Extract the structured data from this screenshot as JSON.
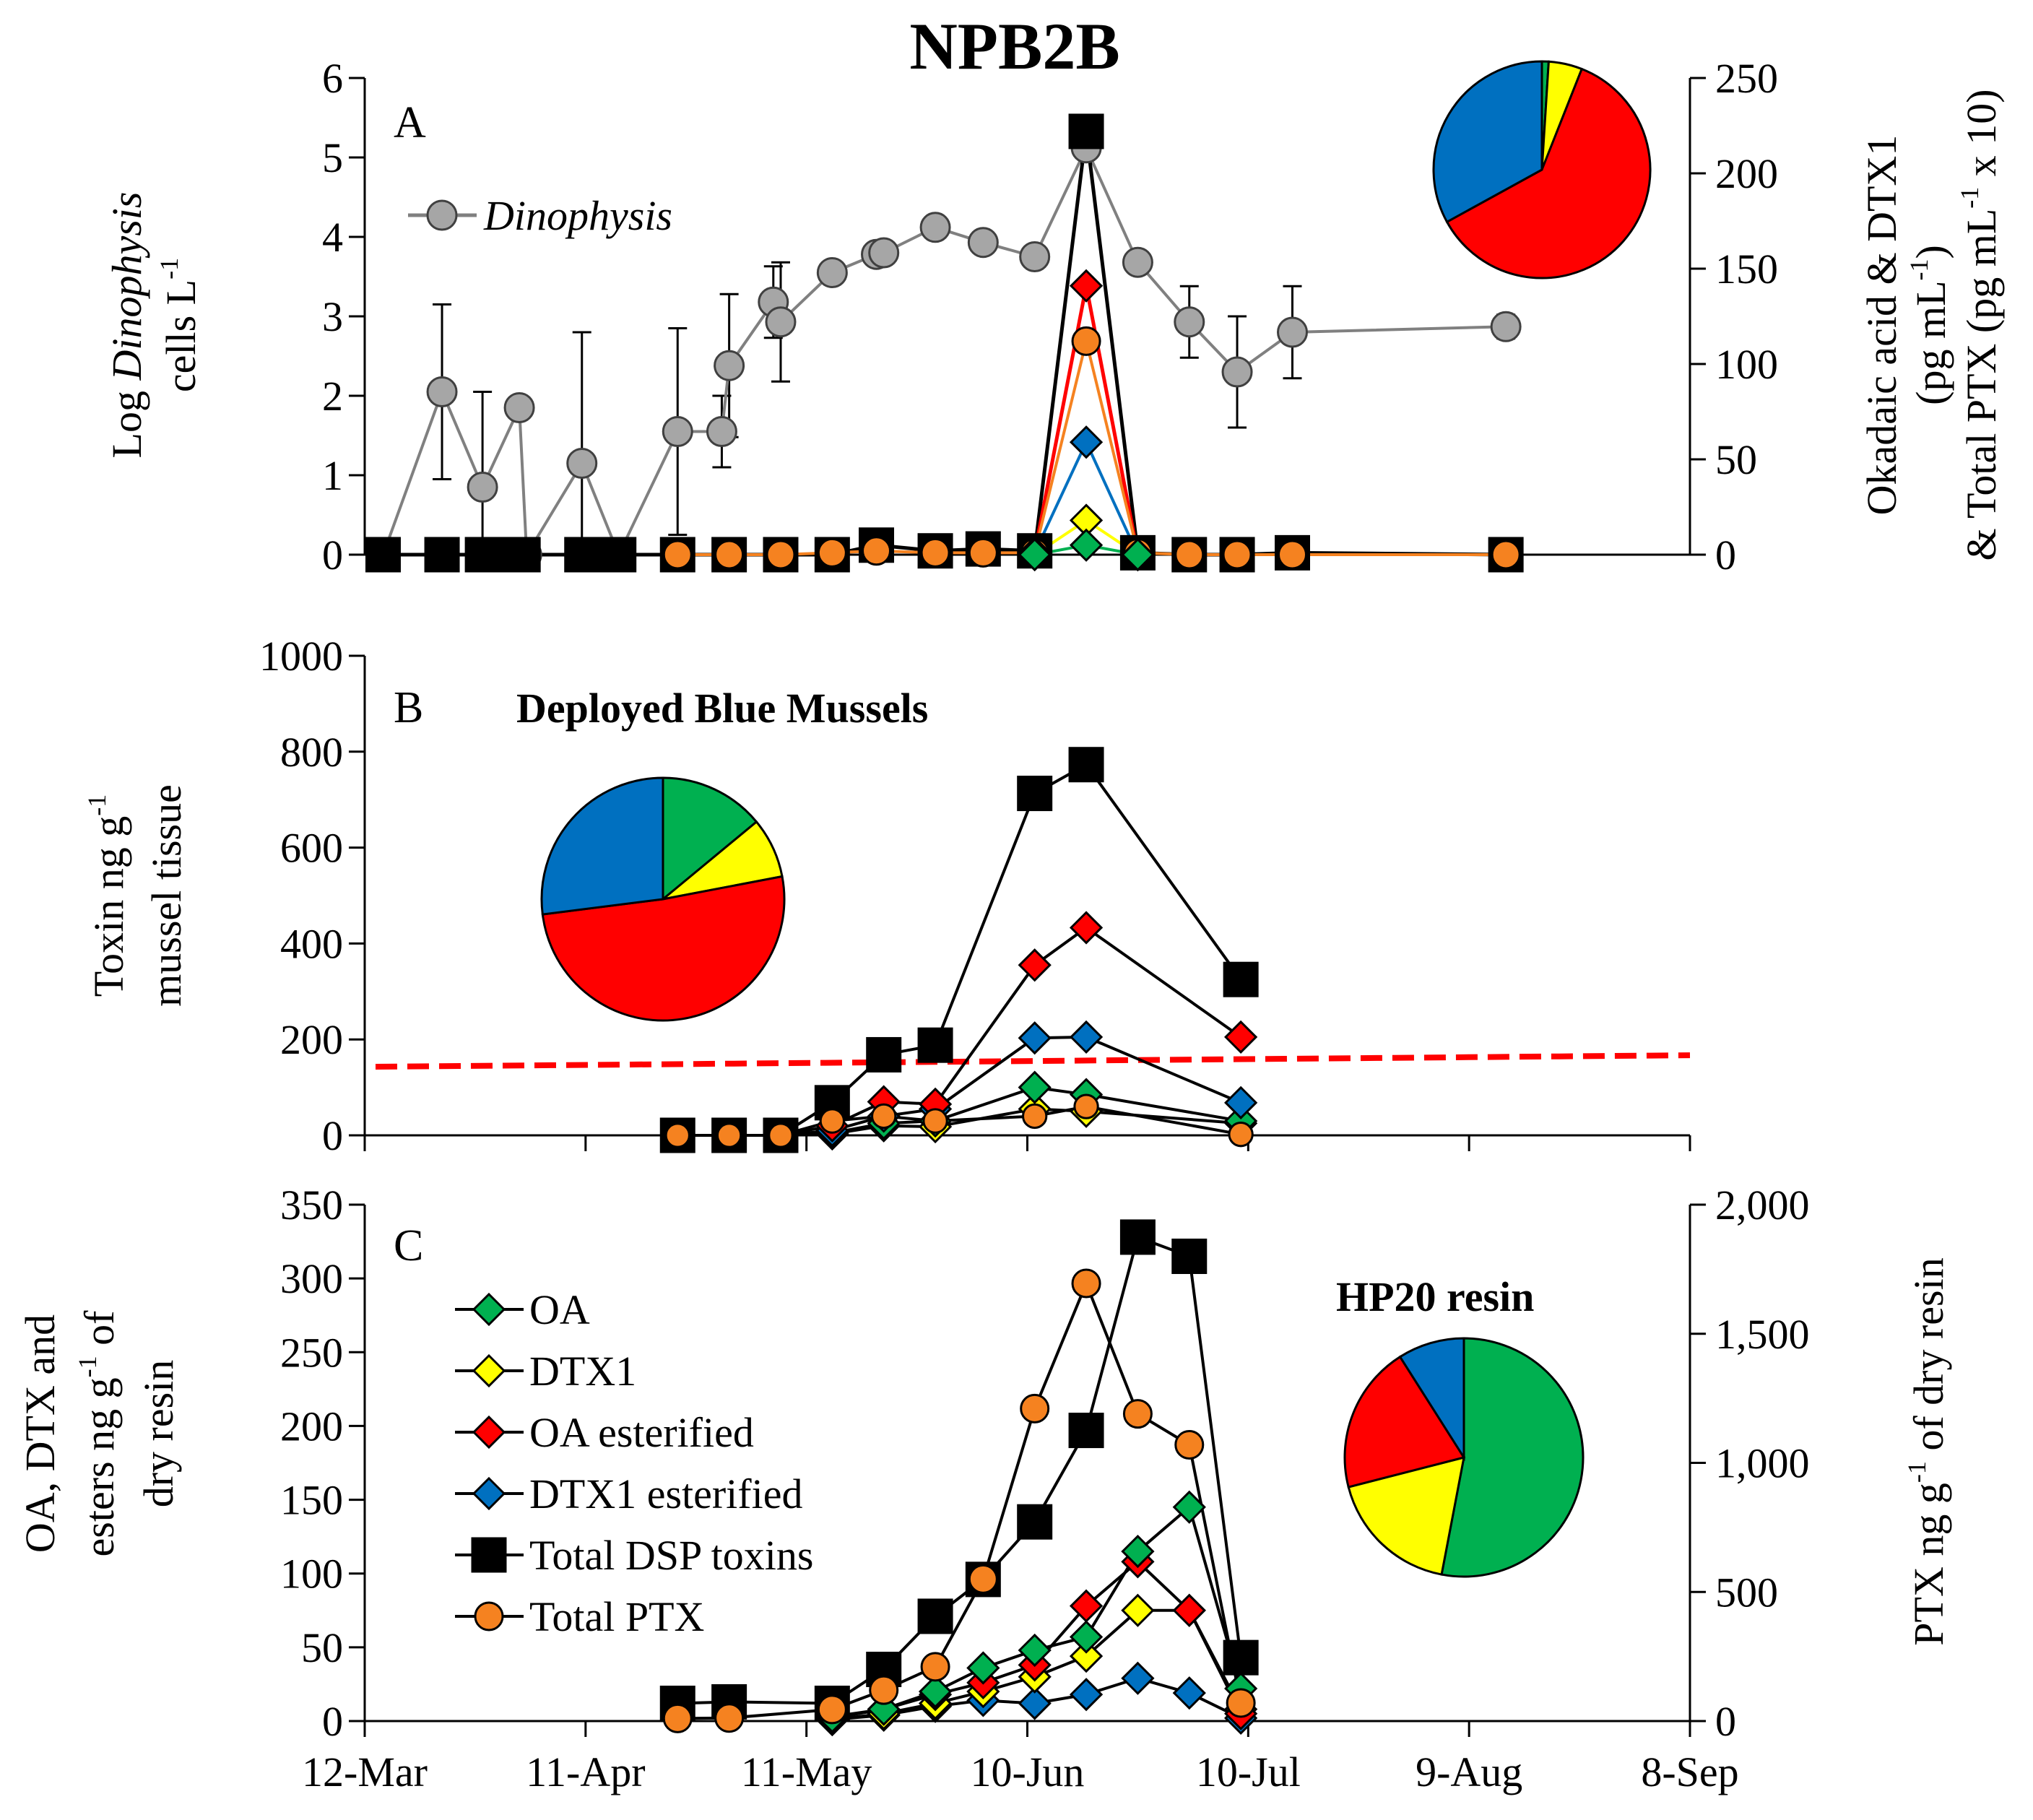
{
  "figure_title": "NPB2B",
  "date_axis": {
    "tick_labels": [
      "12-Mar",
      "11-Apr",
      "11-May",
      "10-Jun",
      "10-Jul",
      "9-Aug",
      "8-Sep"
    ],
    "tick_days": [
      0,
      30,
      60,
      90,
      120,
      150,
      180
    ],
    "range_days": [
      0,
      180
    ]
  },
  "colors": {
    "OA": "#00b050",
    "DTX1": "#ffff00",
    "OA esterified": "#ff0000",
    "DTX1 esterified": "#0070c0",
    "Total DSP toxins": "#000000",
    "Total PTX": "#f58220",
    "Dinophysis": "#a6a6a6",
    "threshold": "#ff0000"
  },
  "legend": {
    "items": [
      "OA",
      "DTX1",
      "OA esterified",
      "DTX1 esterified",
      "Total DSP toxins",
      "Total PTX"
    ]
  },
  "chart_data": [
    {
      "type": "line",
      "panel": "A",
      "title": "",
      "xlabel": "",
      "ylabel": "Log Dinophysis cells L-1",
      "ylabel_parts": {
        "line1_prefix": "Log ",
        "line1_italic": "Dinophysis",
        "line2": "cells L",
        "line2_sup": "-1"
      },
      "y2label_parts": {
        "line1": "Okadaic acid & DTX1",
        "line2_prefix": "(pg mL",
        "line2_sup": "-1",
        "line2_suffix": ")",
        "line3_prefix": "& Total PTX (pg mL",
        "line3_sup": "-1",
        "line3_suffix": " x 10)"
      },
      "ylim": [
        0,
        6
      ],
      "yticks": [
        0,
        1,
        2,
        3,
        4,
        5,
        6
      ],
      "y2lim": [
        0,
        250
      ],
      "y2ticks": [
        0,
        50,
        100,
        150,
        200,
        250
      ],
      "series": [
        {
          "name": "Dinophysis",
          "axis": "left",
          "legend_label": "Dinophysis",
          "points": [
            {
              "day": 2.5,
              "y": 0
            },
            {
              "day": 10.5,
              "y": 2.05,
              "err": 1.1
            },
            {
              "day": 16,
              "y": 0.85,
              "err": 1.2
            },
            {
              "day": 21,
              "y": 1.85,
              "err": 0
            },
            {
              "day": 22,
              "y": 0
            },
            {
              "day": 29.5,
              "y": 1.15,
              "err": 1.65
            },
            {
              "day": 34.5,
              "y": 0
            },
            {
              "day": 42.5,
              "y": 1.55,
              "err": 1.3
            },
            {
              "day": 48.5,
              "y": 1.55,
              "err": 0.45
            },
            {
              "day": 49.5,
              "y": 2.38,
              "err": 0.9
            },
            {
              "day": 55.5,
              "y": 3.18,
              "err": 0.45
            },
            {
              "day": 56.5,
              "y": 2.93,
              "err": 0.75
            },
            {
              "day": 63.5,
              "y": 3.55
            },
            {
              "day": 69.5,
              "y": 3.78
            },
            {
              "day": 70.5,
              "y": 3.8
            },
            {
              "day": 77.5,
              "y": 4.12
            },
            {
              "day": 84,
              "y": 3.93
            },
            {
              "day": 91,
              "y": 3.75
            },
            {
              "day": 98,
              "y": 5.12
            },
            {
              "day": 105,
              "y": 3.68
            },
            {
              "day": 112,
              "y": 2.93,
              "err": 0.45
            },
            {
              "day": 118.5,
              "y": 2.3,
              "err": 0.7
            },
            {
              "day": 126,
              "y": 2.8,
              "err": 0.58
            },
            {
              "day": 155,
              "y": 2.87,
              "err": 0.15
            }
          ]
        },
        {
          "name": "Total DSP toxins",
          "axis": "right",
          "marker": "square",
          "days": [
            2.5,
            10.5,
            16,
            18,
            21.5,
            29.5,
            32,
            34.5,
            42.5,
            49.5,
            56.5,
            63.5,
            69.5,
            77.5,
            84,
            91,
            98,
            105,
            112,
            118.5,
            126,
            155
          ],
          "values": [
            0,
            0,
            0,
            0,
            0,
            0,
            0,
            0,
            0,
            0,
            0,
            0,
            5,
            2,
            3,
            2,
            222,
            1,
            0,
            0,
            1,
            0
          ]
        },
        {
          "name": "OA esterified",
          "axis": "right",
          "marker": "diamond",
          "days": [
            91,
            98,
            105
          ],
          "values": [
            1,
            141,
            0
          ]
        },
        {
          "name": "DTX1 esterified",
          "axis": "right",
          "marker": "diamond",
          "days": [
            91,
            98,
            105
          ],
          "values": [
            1,
            59,
            0
          ]
        },
        {
          "name": "DTX1",
          "axis": "right",
          "marker": "diamond",
          "days": [
            91,
            98,
            105
          ],
          "values": [
            0,
            18,
            0
          ]
        },
        {
          "name": "OA",
          "axis": "right",
          "marker": "diamond",
          "days": [
            91,
            98,
            105
          ],
          "values": [
            0,
            5,
            0
          ]
        },
        {
          "name": "Total PTX",
          "axis": "right",
          "marker": "circle",
          "days": [
            42.5,
            49.5,
            56.5,
            63.5,
            69.5,
            77.5,
            84,
            91,
            98,
            105,
            112,
            118.5,
            126,
            155
          ],
          "values": [
            0,
            0,
            0,
            1,
            2,
            1,
            1,
            1,
            112,
            1,
            0,
            0,
            0,
            0
          ]
        }
      ],
      "pie": {
        "labels": [
          "OA",
          "DTX1",
          "OA esterified",
          "DTX1 esterified"
        ],
        "values": [
          1,
          5,
          61,
          33
        ]
      }
    },
    {
      "type": "line",
      "panel": "B",
      "title": "Deployed Blue Mussels",
      "xlabel": "",
      "ylabel": "Toxin ng g-1 mussel tissue",
      "ylabel_parts": {
        "line1_prefix": "Toxin ng g",
        "line1_sup": "-1",
        "line2": "mussel tissue"
      },
      "ylim": [
        0,
        1000
      ],
      "yticks": [
        0,
        200,
        400,
        600,
        800,
        1000
      ],
      "threshold_line": {
        "days": [
          0,
          180
        ],
        "values": [
          143,
          167
        ]
      },
      "series": [
        {
          "name": "Total DSP toxins",
          "marker": "square",
          "days": [
            42.5,
            49.5,
            56.5,
            63.5,
            70.5,
            77.5,
            91,
            98,
            119
          ],
          "values": [
            0,
            0,
            0,
            68,
            168,
            188,
            713,
            773,
            325
          ]
        },
        {
          "name": "OA esterified",
          "marker": "diamond",
          "days": [
            42.5,
            49.5,
            56.5,
            63.5,
            70.5,
            77.5,
            91,
            98,
            119
          ],
          "values": [
            0,
            0,
            0,
            20,
            70,
            65,
            355,
            433,
            205
          ]
        },
        {
          "name": "DTX1 esterified",
          "marker": "diamond",
          "days": [
            42.5,
            49.5,
            56.5,
            63.5,
            70.5,
            77.5,
            91,
            98,
            119
          ],
          "values": [
            0,
            0,
            0,
            10,
            40,
            55,
            203,
            205,
            68
          ]
        },
        {
          "name": "OA",
          "marker": "diamond",
          "days": [
            42.5,
            49.5,
            56.5,
            63.5,
            70.5,
            77.5,
            91,
            98,
            119
          ],
          "values": [
            0,
            0,
            0,
            5,
            25,
            30,
            100,
            85,
            30
          ]
        },
        {
          "name": "DTX1",
          "marker": "diamond",
          "days": [
            42.5,
            49.5,
            56.5,
            63.5,
            70.5,
            77.5,
            91,
            98,
            119
          ],
          "values": [
            0,
            0,
            0,
            3,
            20,
            18,
            55,
            50,
            25
          ]
        },
        {
          "name": "Total PTX",
          "marker": "circle",
          "days": [
            42.5,
            49.5,
            56.5,
            63.5,
            70.5,
            77.5,
            91,
            98,
            119
          ],
          "values": [
            0,
            0,
            0,
            30,
            40,
            30,
            40,
            60,
            2
          ]
        }
      ],
      "pie": {
        "labels": [
          "OA",
          "DTX1",
          "OA esterified",
          "DTX1 esterified"
        ],
        "values": [
          14,
          8,
          51,
          27
        ]
      }
    },
    {
      "type": "line",
      "panel": "C",
      "title": "HP20 resin",
      "xlabel": "",
      "ylabel": "OA, DTX and esters ng g-1 of dry resin",
      "ylabel_parts": {
        "line1": "OA, DTX and",
        "line2_prefix": "esters ng g",
        "line2_sup": "-1",
        "line2_suffix": " of",
        "line3": "dry resin"
      },
      "y2label_parts": {
        "prefix": "PTX ng g",
        "sup": "-1",
        "suffix": " of dry resin"
      },
      "ylim": [
        0,
        350
      ],
      "yticks": [
        0,
        50,
        100,
        150,
        200,
        250,
        300,
        350
      ],
      "y2lim": [
        0,
        2000
      ],
      "y2ticks": [
        0,
        500,
        1000,
        1500,
        2000
      ],
      "y2tick_labels": [
        "0",
        "500",
        "1,000",
        "1,500",
        "2,000"
      ],
      "series": [
        {
          "name": "Total DSP toxins",
          "axis": "left",
          "marker": "square",
          "days": [
            42.5,
            49.5,
            63.5,
            70.5,
            77.5,
            84,
            91,
            98,
            105,
            112,
            119
          ],
          "values": [
            12,
            13,
            12,
            35,
            71,
            96,
            135,
            197,
            328,
            315,
            43
          ]
        },
        {
          "name": "OA",
          "axis": "left",
          "marker": "diamond",
          "days": [
            63.5,
            70.5,
            77.5,
            84,
            91,
            98,
            105,
            112,
            119
          ],
          "values": [
            3,
            8,
            20,
            36,
            48,
            57,
            115,
            145,
            22
          ]
        },
        {
          "name": "OA esterified",
          "axis": "left",
          "marker": "diamond",
          "days": [
            63.5,
            70.5,
            77.5,
            84,
            91,
            98,
            105,
            112,
            119
          ],
          "values": [
            2,
            8,
            18,
            26,
            38,
            78,
            108,
            75,
            5
          ]
        },
        {
          "name": "DTX1",
          "axis": "left",
          "marker": "diamond",
          "days": [
            63.5,
            70.5,
            77.5,
            84,
            91,
            98,
            105,
            112,
            119
          ],
          "values": [
            1,
            5,
            12,
            20,
            30,
            44,
            75,
            75,
            8
          ]
        },
        {
          "name": "DTX1 esterified",
          "axis": "left",
          "marker": "diamond",
          "days": [
            63.5,
            70.5,
            77.5,
            84,
            91,
            98,
            105,
            112,
            119
          ],
          "values": [
            1,
            4,
            10,
            14,
            12,
            18,
            29,
            19,
            2
          ]
        },
        {
          "name": "Total PTX",
          "axis": "right",
          "marker": "circle",
          "days": [
            42.5,
            49.5,
            63.5,
            70.5,
            77.5,
            84,
            91,
            98,
            105,
            112,
            119
          ],
          "values": [
            10,
            12,
            45,
            120,
            210,
            550,
            1210,
            1695,
            1190,
            1070,
            70
          ]
        }
      ],
      "pie": {
        "labels": [
          "OA",
          "DTX1",
          "OA esterified",
          "DTX1 esterified"
        ],
        "values": [
          53,
          18,
          20,
          9
        ]
      }
    }
  ]
}
